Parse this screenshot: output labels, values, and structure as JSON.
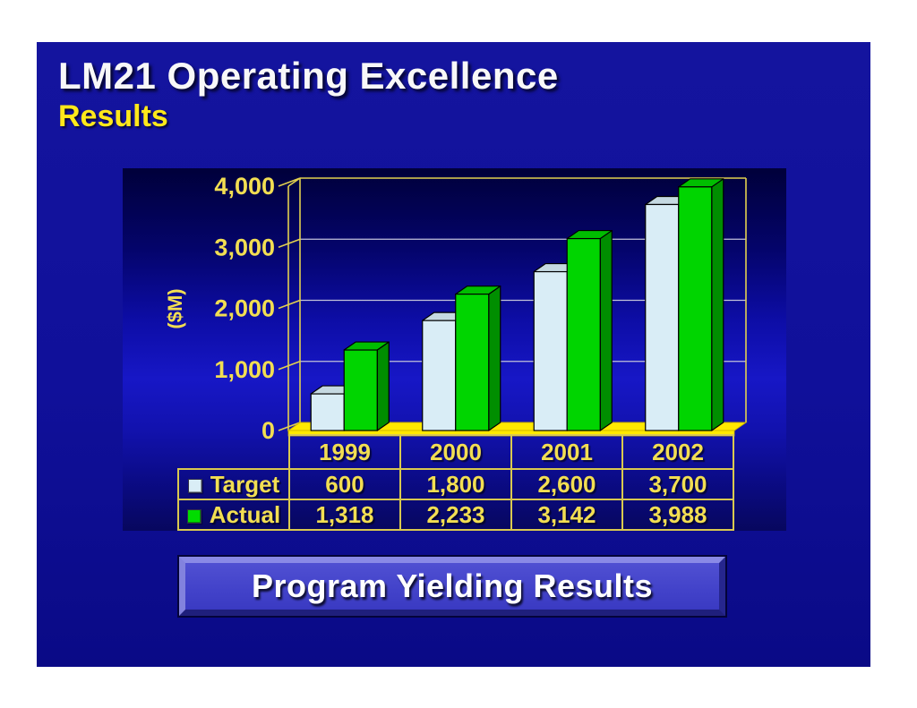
{
  "slide": {
    "title": "LM21 Operating Excellence",
    "subtitle": "Results",
    "banner_label": "Program Yielding Results"
  },
  "chart_data": {
    "type": "bar",
    "style": "3d-column",
    "title": "",
    "xlabel": "",
    "ylabel": "($M)",
    "ylim": [
      0,
      4000
    ],
    "y_ticks": [
      0,
      1000,
      2000,
      3000,
      4000
    ],
    "y_tick_labels": [
      "0",
      "1,000",
      "2,000",
      "3,000",
      "4,000"
    ],
    "categories": [
      "1999",
      "2000",
      "2001",
      "2002"
    ],
    "series": [
      {
        "name": "Target",
        "values": [
          600,
          1800,
          2600,
          3700
        ],
        "labels": [
          "600",
          "1,800",
          "2,600",
          "3,700"
        ]
      },
      {
        "name": "Actual",
        "values": [
          1318,
          2233,
          3142,
          3988
        ],
        "labels": [
          "1,318",
          "2,233",
          "3,142",
          "3,988"
        ]
      }
    ],
    "grid": true,
    "legend_position": "table-left"
  },
  "colors": {
    "slide_bg": "#12129c",
    "panel_bright": "#1717c6",
    "panel_dark": "#00003a",
    "axis": "#e3d14f",
    "grid": "#c2c2da",
    "floor": "#ffe900",
    "floor_edge": "#cdb400",
    "label_yellow": "#f2de52",
    "title_white": "#f8f8f8",
    "subtitle_yellow": "#ffe81a",
    "banner_fill": "#4343ca",
    "target_front": "#d9edf6",
    "target_top": "#c5d9e1",
    "target_side": "#a9c4ce",
    "actual_front": "#00d500",
    "actual_top": "#00be00",
    "actual_side": "#008e00"
  }
}
